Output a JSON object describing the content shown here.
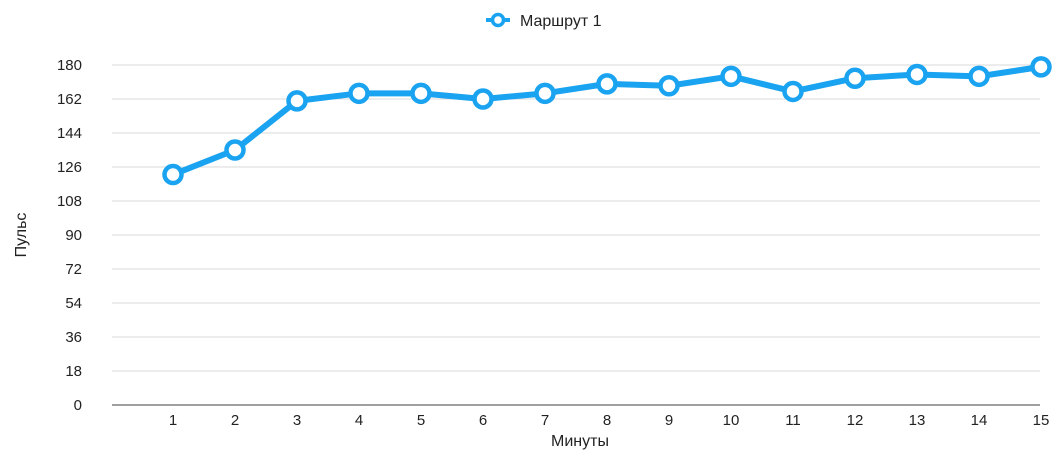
{
  "chart_data": {
    "type": "line",
    "title": "",
    "xlabel": "Минуты",
    "ylabel": "Пульс",
    "x": [
      "1",
      "2",
      "3",
      "4",
      "5",
      "6",
      "7",
      "8",
      "9",
      "10",
      "11",
      "12",
      "13",
      "14",
      "15"
    ],
    "ylim": [
      0,
      180
    ],
    "yticks": [
      0,
      18,
      36,
      54,
      72,
      90,
      108,
      126,
      144,
      162,
      180
    ],
    "grid": true,
    "legend_position": "top-center",
    "series": [
      {
        "name": "Маршрут 1",
        "color": "#1aa3f0",
        "values": [
          122,
          135,
          161,
          165,
          165,
          162,
          165,
          170,
          169,
          174,
          166,
          173,
          175,
          174,
          179
        ]
      }
    ]
  }
}
